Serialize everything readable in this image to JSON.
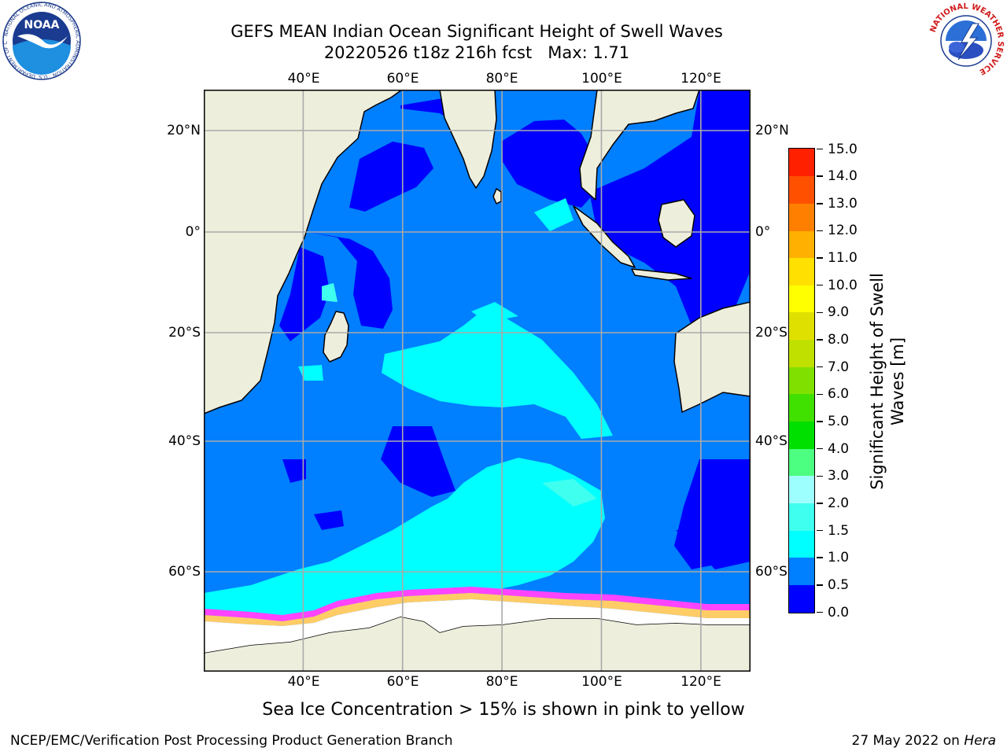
{
  "header": {
    "title_line1": "GEFS MEAN Indian Ocean Significant Height of Swell Waves",
    "title_line2": "20220526 t18z 216h fcst   Max: 1.71"
  },
  "map": {
    "lon_ticks": [
      "40°E",
      "60°E",
      "80°E",
      "100°E",
      "120°E"
    ],
    "lat_ticks_left": [
      "20°N",
      "0°",
      "20°S",
      "40°S",
      "60°S"
    ],
    "lat_ticks_right": [
      "20°N",
      "0°",
      "20°S",
      "40°S",
      "60°S"
    ],
    "lon_values": [
      40,
      60,
      80,
      100,
      120
    ],
    "lat_values": [
      20,
      0,
      -20,
      -40,
      -60
    ],
    "extent": {
      "lon_min": 20,
      "lon_max": 130,
      "lat_min": -72,
      "lat_max": 28
    },
    "land_color": "#eeeedd",
    "ice_color": "#ffffff",
    "grid_color": "#aaaaaa"
  },
  "colorbar": {
    "title_line1": "Significant Height of Swell",
    "title_line2": "Waves [m]",
    "labels": [
      "0.0",
      "0.5",
      "1.0",
      "1.5",
      "2.0",
      "3.0",
      "4.0",
      "5.0",
      "6.0",
      "7.0",
      "8.0",
      "9.0",
      "10.0",
      "11.0",
      "12.0",
      "13.0",
      "14.0",
      "15.0"
    ],
    "colors": [
      "#0000ff",
      "#007fff",
      "#00ffff",
      "#3fffef",
      "#9effff",
      "#4dff80",
      "#00e000",
      "#40e000",
      "#80e000",
      "#c0e000",
      "#e0e000",
      "#ffff00",
      "#ffe000",
      "#ffb000",
      "#ff8000",
      "#ff5000",
      "#ff2000"
    ]
  },
  "footer": {
    "note": "Sea Ice Concentration > 15% is shown in pink to yellow",
    "left": "NCEP/EMC/Verification Post Processing Product Generation Branch",
    "right_date": "27 May 2022 on ",
    "right_machine": "Hera"
  },
  "logos": {
    "noaa_text": "NOAA",
    "noaa_ring": "NATIONAL OCEANIC AND ATMOSPHERIC ADMINISTRATION · U.S. DEPARTMENT OF COMMERCE",
    "nws_ring": "NATIONAL WEATHER SERVICE"
  }
}
